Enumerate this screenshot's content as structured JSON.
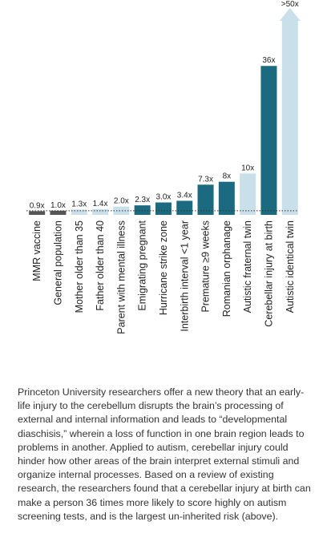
{
  "chart_data": {
    "type": "bar",
    "categories": [
      "MMR vaccine",
      "General population",
      "Mother older than 35",
      "Father older than 40",
      "Parent with mental illness",
      "Emigrating pregnant",
      "Hurricane strike zone",
      "Interbirth interval <1 year",
      "Premature ≥9 weeks",
      "Romanian orphanage",
      "Autistic fraternal twin",
      "Cerebellar injury at birth",
      "Autistic identical twin"
    ],
    "values": [
      0.9,
      1.0,
      1.3,
      1.4,
      2.0,
      2.3,
      3.0,
      3.4,
      7.3,
      8,
      10,
      36,
      50
    ],
    "value_labels": [
      "0.9x",
      "1.0x",
      "1.3x",
      "1.4x",
      "2.0x",
      "2.3x",
      "3.0x",
      "3.4x",
      "7.3x",
      "8x",
      "10x",
      "36x",
      ">50x"
    ],
    "colors": [
      "#555555",
      "#555555",
      "#c9e0ea",
      "#c9e0ea",
      "#c9e0ea",
      "#1b6a80",
      "#1b6a80",
      "#1b6a80",
      "#1b6a80",
      "#1b6a80",
      "#c9e0ea",
      "#1b6a80",
      "#c9e0ea"
    ]
  },
  "caption": "Princeton University researchers offer a new theory that an early-life injury to the cerebellum disrupts the brain’s processing of external and internal information and leads to “developmental diaschisis,” wherein a loss of function in one brain region leads to problems in another. Applied to autism, cerebellar injury could hinder how other areas of the brain interpret external stimuli and organize internal processes. Based on a review of existing research, the researchers found that a cerebellar injury at birth can make a person 36 times more likely to score highly on autism screening tests, and is the largest un-inherited risk (above)."
}
